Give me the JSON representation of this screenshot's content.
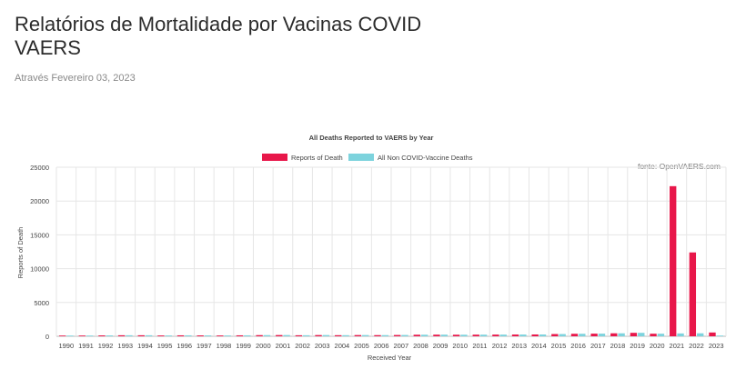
{
  "page": {
    "title": "Relatórios de Mortalidade por Vacinas COVID VAERS",
    "date": "Através Fevereiro 03, 2023"
  },
  "colors": {
    "reports": "#e8174a",
    "non_covid": "#7dd3dd",
    "grid": "#e6e6e6",
    "axis_text": "#444444"
  },
  "chart_data": {
    "type": "bar",
    "title": "All Deaths Reported to VAERS by Year",
    "source": "fonte: OpenVAERS.com",
    "xlabel": "Received Year",
    "ylabel": "Reports of Death",
    "ylim": [
      0,
      25000
    ],
    "yticks": [
      0,
      5000,
      10000,
      15000,
      20000,
      25000
    ],
    "legend_position": "top-center",
    "grid": true,
    "categories": [
      "1990",
      "1991",
      "1992",
      "1993",
      "1994",
      "1995",
      "1996",
      "1997",
      "1998",
      "1999",
      "2000",
      "2001",
      "2002",
      "2003",
      "2004",
      "2005",
      "2006",
      "2007",
      "2008",
      "2009",
      "2010",
      "2011",
      "2012",
      "2013",
      "2014",
      "2015",
      "2016",
      "2017",
      "2018",
      "2019",
      "2020",
      "2021",
      "2022",
      "2023"
    ],
    "series": [
      {
        "name": "Reports of Death",
        "color_key": "reports",
        "values": [
          60,
          110,
          130,
          150,
          150,
          120,
          140,
          130,
          120,
          140,
          170,
          180,
          150,
          180,
          160,
          180,
          170,
          190,
          230,
          240,
          230,
          240,
          250,
          260,
          270,
          330,
          370,
          390,
          440,
          510,
          380,
          22200,
          12400,
          560
        ]
      },
      {
        "name": "All Non COVID-Vaccine Deaths",
        "color_key": "non_covid",
        "values": [
          60,
          110,
          130,
          150,
          150,
          120,
          140,
          130,
          120,
          140,
          170,
          180,
          150,
          180,
          160,
          180,
          170,
          190,
          230,
          240,
          230,
          240,
          250,
          260,
          270,
          330,
          370,
          390,
          440,
          510,
          380,
          420,
          440,
          60
        ]
      }
    ]
  }
}
